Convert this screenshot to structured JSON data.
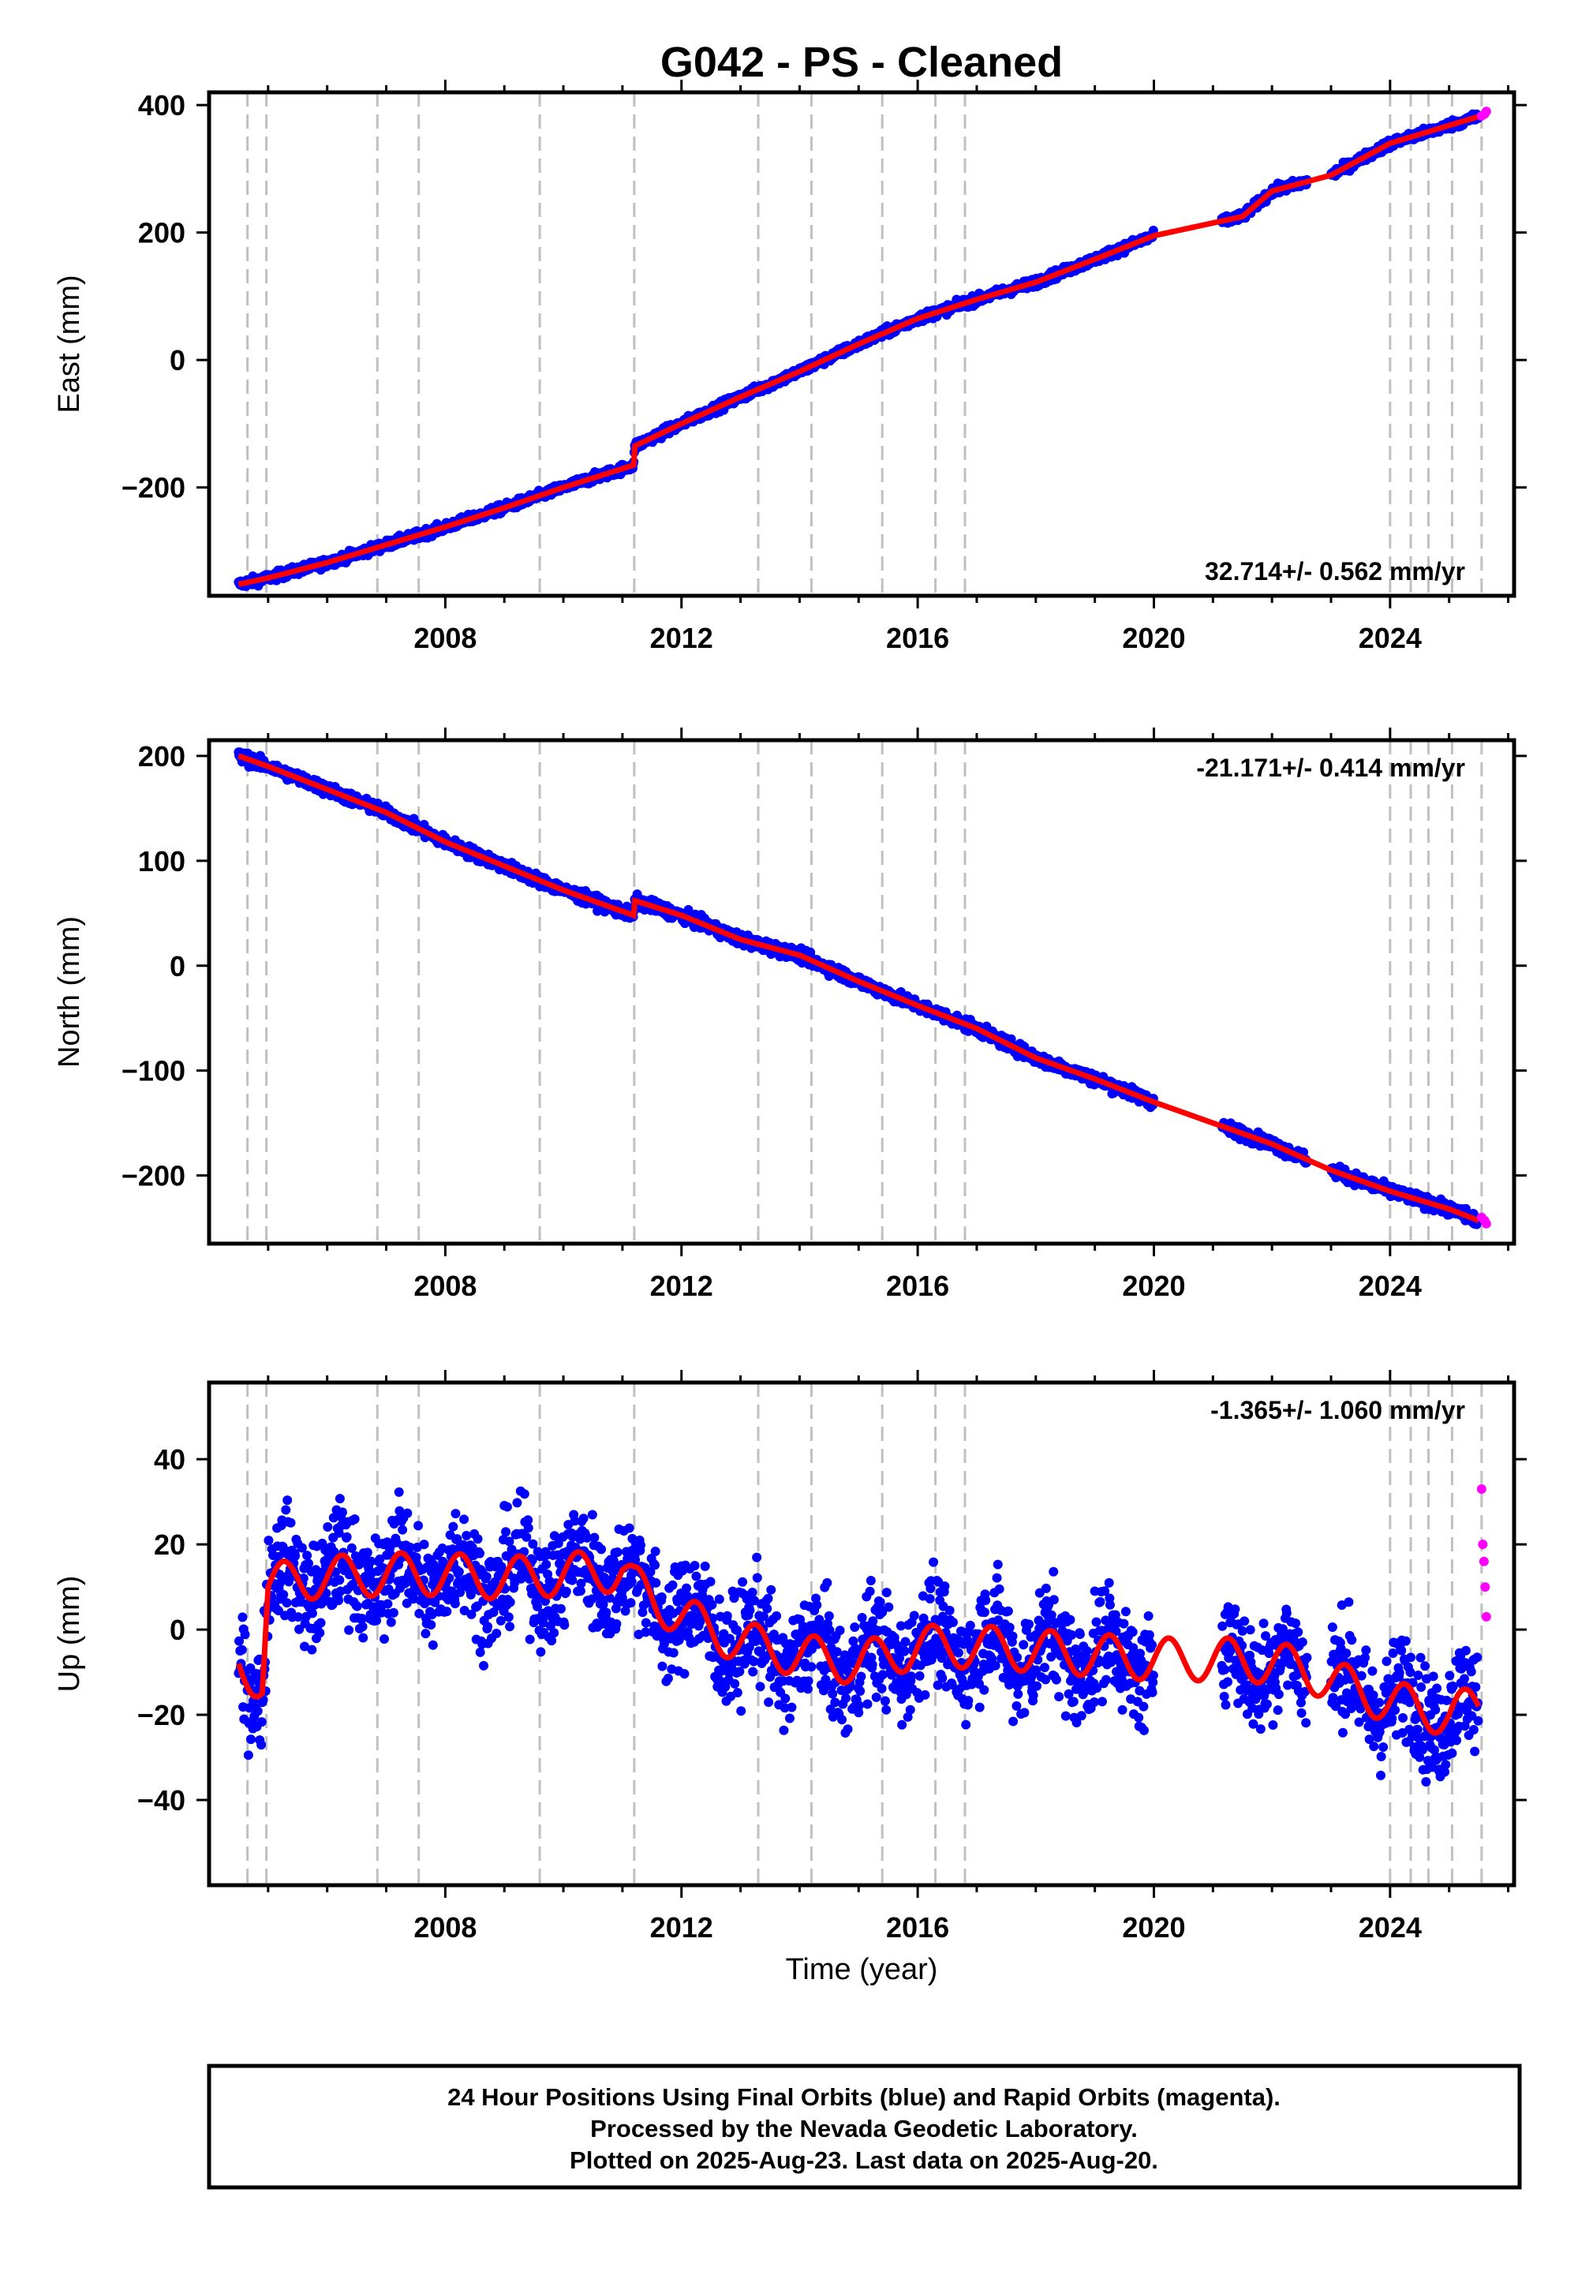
{
  "title": "G042  - PS - Cleaned",
  "footer": {
    "line1": "24 Hour Positions Using Final Orbits (blue) and Rapid Orbits (magenta).",
    "line2": "Processed by the Nevada Geodetic Laboratory.",
    "line3": "Plotted on 2025-Aug-23. Last data on 2025-Aug-20."
  },
  "colors": {
    "final_orbits": "#0000ff",
    "rapid_orbits": "#ff00ff",
    "model_fit": "#ff0000",
    "step_lines": "#c0c0c0"
  },
  "xlabel": "Time (year)",
  "chart_data": [
    {
      "type": "scatter",
      "component": "east",
      "ylabel": "East (mm)",
      "rate_text": "32.714+/- 0.562 mm/yr",
      "xlim": [
        2004.0,
        2026.1
      ],
      "ylim": [
        -370,
        420
      ],
      "yticks": [
        -200,
        0,
        200,
        400
      ],
      "xticks": [
        2008,
        2012,
        2016,
        2020,
        2024
      ],
      "step_lines": [
        2004.65,
        2004.97,
        2006.85,
        2007.55,
        2009.6,
        2011.2,
        2013.3,
        2014.2,
        2015.4,
        2016.3,
        2016.8,
        2024.0,
        2024.35,
        2024.65,
        2025.05,
        2025.55
      ],
      "gaps": [
        [
          2020.0,
          2021.15
        ],
        [
          2022.6,
          2023.0
        ]
      ],
      "series": [
        {
          "name": "Final Orbits",
          "color": "#0000ff",
          "x": [
            2004.5,
            2005.0,
            2006.0,
            2007.0,
            2008.0,
            2009.0,
            2010.0,
            2011.19,
            2011.21,
            2012.0,
            2013.0,
            2014.0,
            2015.0,
            2016.0,
            2017.0,
            2018.0,
            2019.0,
            2020.0,
            2021.5,
            2022.0,
            2023.0,
            2024.0,
            2025.0,
            2025.5
          ],
          "y": [
            -352,
            -342,
            -318,
            -290,
            -262,
            -232,
            -200,
            -165,
            -135,
            -100,
            -58,
            -18,
            25,
            65,
            95,
            122,
            158,
            195,
            225,
            265,
            290,
            340,
            368,
            382
          ]
        },
        {
          "name": "Rapid Orbits",
          "color": "#ff00ff",
          "x": [
            2025.55,
            2025.6,
            2025.63
          ],
          "y": [
            383,
            386,
            390
          ]
        }
      ],
      "noise_mm": 5
    },
    {
      "type": "scatter",
      "component": "north",
      "ylabel": "North (mm)",
      "rate_text": "-21.171+/- 0.414 mm/yr",
      "xlim": [
        2004.0,
        2026.1
      ],
      "ylim": [
        -265,
        215
      ],
      "yticks": [
        -200,
        -100,
        0,
        100,
        200
      ],
      "xticks": [
        2008,
        2012,
        2016,
        2020,
        2024
      ],
      "step_lines": [
        2004.65,
        2004.97,
        2006.85,
        2007.55,
        2009.6,
        2011.2,
        2013.3,
        2014.2,
        2015.4,
        2016.3,
        2016.8,
        2024.0,
        2024.35,
        2024.65,
        2025.05,
        2025.55
      ],
      "gaps": [
        [
          2020.0,
          2021.15
        ],
        [
          2022.6,
          2023.0
        ]
      ],
      "series": [
        {
          "name": "Final Orbits",
          "color": "#0000ff",
          "x": [
            2004.5,
            2005.0,
            2006.0,
            2007.0,
            2008.0,
            2009.0,
            2010.0,
            2011.19,
            2011.21,
            2012.0,
            2013.0,
            2014.0,
            2015.0,
            2016.0,
            2017.0,
            2018.0,
            2019.0,
            2020.0,
            2021.5,
            2022.0,
            2023.0,
            2024.0,
            2025.0,
            2025.5
          ],
          "y": [
            200,
            190,
            168,
            146,
            118,
            95,
            72,
            48,
            62,
            48,
            25,
            10,
            -15,
            -38,
            -60,
            -88,
            -108,
            -130,
            -160,
            -170,
            -195,
            -215,
            -232,
            -243
          ]
        },
        {
          "name": "Rapid Orbits",
          "color": "#ff00ff",
          "x": [
            2025.55,
            2025.6,
            2025.63
          ],
          "y": [
            -240,
            -243,
            -246
          ]
        }
      ],
      "noise_mm": 4
    },
    {
      "type": "scatter",
      "component": "up",
      "ylabel": "Up (mm)",
      "rate_text": "-1.365+/- 1.060 mm/yr",
      "xlim": [
        2004.0,
        2026.1
      ],
      "ylim": [
        -60,
        58
      ],
      "yticks": [
        -40,
        -20,
        0,
        20,
        40
      ],
      "xticks": [
        2008,
        2012,
        2016,
        2020,
        2024
      ],
      "step_lines": [
        2004.65,
        2004.97,
        2006.85,
        2007.55,
        2009.6,
        2011.2,
        2013.3,
        2014.2,
        2015.4,
        2016.3,
        2016.8,
        2024.0,
        2024.35,
        2024.65,
        2025.05,
        2025.55
      ],
      "gaps": [
        [
          2020.0,
          2021.15
        ],
        [
          2022.6,
          2023.0
        ]
      ],
      "series": [
        {
          "name": "Final Orbits",
          "color": "#0000ff",
          "x": [
            2004.5,
            2004.9,
            2005.0,
            2005.5,
            2007.0,
            2008.0,
            2009.0,
            2010.0,
            2011.0,
            2011.2,
            2012.0,
            2013.0,
            2014.0,
            2015.0,
            2016.0,
            2017.0,
            2018.0,
            2019.0,
            2020.0,
            2021.5,
            2022.5,
            2023.0,
            2024.0,
            2025.0,
            2025.5
          ],
          "y": [
            -8,
            -12,
            10,
            12,
            13,
            13,
            12,
            13,
            14,
            10,
            3,
            -3,
            -6,
            -8,
            -4,
            -4,
            -5,
            -6,
            -7,
            -7,
            -9,
            -12,
            -17,
            -20,
            -18
          ]
        },
        {
          "name": "Rapid Orbits",
          "color": "#ff00ff",
          "x": [
            2025.55,
            2025.57,
            2025.59,
            2025.61,
            2025.63
          ],
          "y": [
            33,
            20,
            16,
            10,
            3
          ]
        }
      ],
      "noise_mm": 9,
      "seasonal_amplitude_mm": 5
    }
  ]
}
